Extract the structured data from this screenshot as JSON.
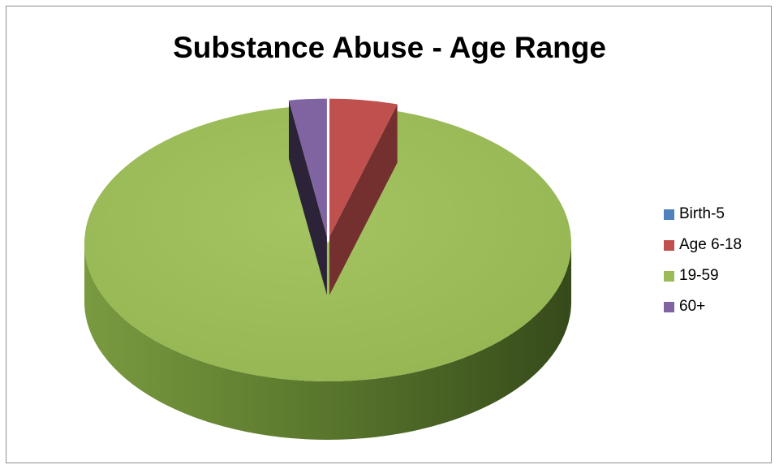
{
  "chart_data": {
    "type": "pie",
    "title": "Substance Abuse - Age Range",
    "style": "3d-exploded",
    "legend_position": "right",
    "slices": [
      {
        "label": "Birth-5",
        "value": 0,
        "color": "#4f81bd",
        "exploded": true
      },
      {
        "label": "Age 6-18",
        "value": 4.5,
        "color": "#c0504d",
        "exploded": true
      },
      {
        "label": "19-59",
        "value": 93.0,
        "color": "#9bbb59",
        "exploded": false
      },
      {
        "label": "60+",
        "value": 2.5,
        "color": "#8064a2",
        "exploded": true
      }
    ]
  }
}
